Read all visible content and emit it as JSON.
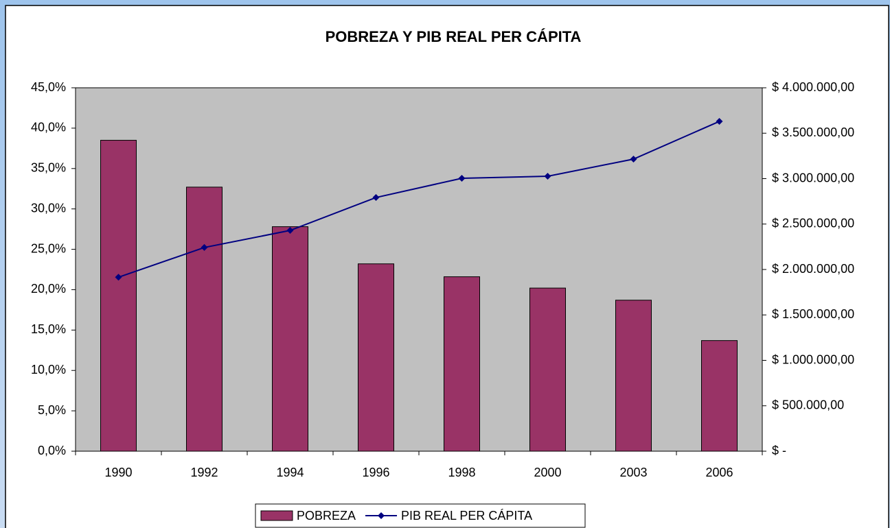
{
  "chart_data": {
    "type": "bar",
    "title": "POBREZA Y PIB REAL PER CÁPITA",
    "categories": [
      "1990",
      "1992",
      "1994",
      "1996",
      "1998",
      "2000",
      "2003",
      "2006"
    ],
    "series": [
      {
        "name": "POBREZA",
        "type": "bar",
        "color": "#993366",
        "values": [
          38.5,
          32.7,
          27.8,
          23.2,
          21.6,
          20.2,
          18.7,
          13.7
        ]
      },
      {
        "name": "PIB REAL PER CÁPITA",
        "type": "line",
        "axis": "y2",
        "color": "#000080",
        "values": [
          1915000,
          2242000,
          2430000,
          2792000,
          3004000,
          3026000,
          3215000,
          3630000
        ]
      }
    ],
    "ylim": [
      0,
      45
    ],
    "yticks": [
      {
        "value": 0,
        "label": "0,0%"
      },
      {
        "value": 5,
        "label": "5,0%"
      },
      {
        "value": 10,
        "label": "10,0%"
      },
      {
        "value": 15,
        "label": "15,0%"
      },
      {
        "value": 20,
        "label": "20,0%"
      },
      {
        "value": 25,
        "label": "25,0%"
      },
      {
        "value": 30,
        "label": "30,0%"
      },
      {
        "value": 35,
        "label": "35,0%"
      },
      {
        "value": 40,
        "label": "40,0%"
      },
      {
        "value": 45,
        "label": "45,0%"
      }
    ],
    "y2lim": [
      0,
      4000000
    ],
    "y2ticks": [
      {
        "value": 0,
        "label": "$ -"
      },
      {
        "value": 500000,
        "label": "$ 500.000,00"
      },
      {
        "value": 1000000,
        "label": "$ 1.000.000,00"
      },
      {
        "value": 1500000,
        "label": "$ 1.500.000,00"
      },
      {
        "value": 2000000,
        "label": "$ 2.000.000,00"
      },
      {
        "value": 2500000,
        "label": "$ 2.500.000,00"
      },
      {
        "value": 3000000,
        "label": "$ 3.000.000,00"
      },
      {
        "value": 3500000,
        "label": "$ 3.500.000,00"
      },
      {
        "value": 4000000,
        "label": "$ 4.000.000,00"
      }
    ],
    "plot_background": "#c0c0c0",
    "legend": "bottom"
  }
}
